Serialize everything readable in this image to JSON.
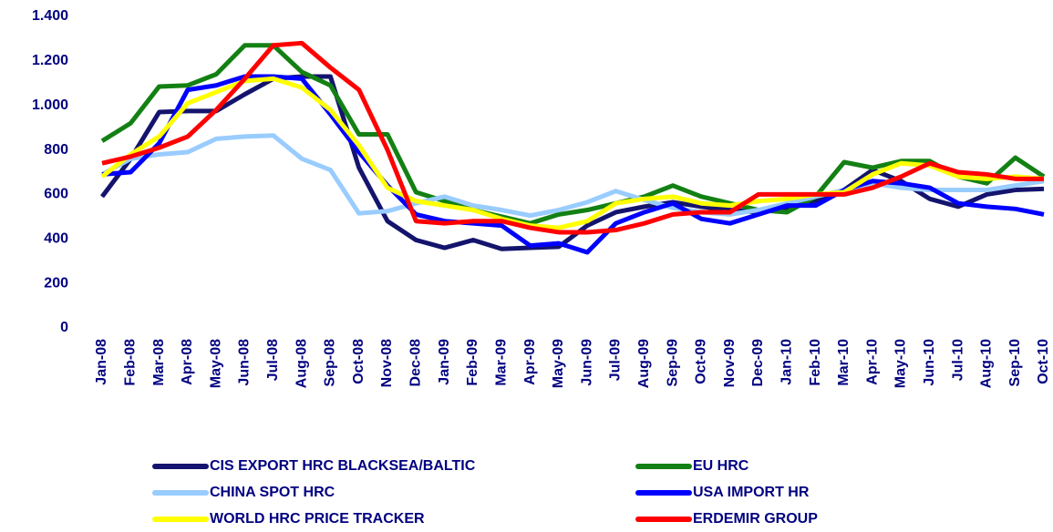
{
  "chart_data": {
    "type": "line",
    "categories": [
      "Jan-08",
      "Feb-08",
      "Mar-08",
      "Apr-08",
      "May-08",
      "Jun-08",
      "Jul-08",
      "Aug-08",
      "Sep-08",
      "Oct-08",
      "Nov-08",
      "Dec-08",
      "Jan-09",
      "Feb-09",
      "Mar-09",
      "Apr-09",
      "May-09",
      "Jun-09",
      "Jul-09",
      "Aug-09",
      "Sep-09",
      "Oct-09",
      "Nov-09",
      "Dec-09",
      "Jan-10",
      "Feb-10",
      "Mar-10",
      "Apr-10",
      "May-10",
      "Jun-10",
      "Jul-10",
      "Aug-10",
      "Sep-10",
      "Oct-10"
    ],
    "series": [
      {
        "name": "CIS EXPORT HRC BLACKSEA/BALTIC",
        "color": "#14146e",
        "values": [
          590,
          760,
          970,
          975,
          975,
          1050,
          1120,
          1130,
          1130,
          720,
          480,
          395,
          360,
          395,
          355,
          360,
          365,
          460,
          520,
          545,
          565,
          545,
          530,
          520,
          540,
          570,
          620,
          710,
          660,
          580,
          545,
          600,
          620,
          625
        ]
      },
      {
        "name": "EU HRC",
        "color": "#138013",
        "values": [
          840,
          920,
          1085,
          1090,
          1140,
          1270,
          1270,
          1150,
          1090,
          870,
          870,
          610,
          570,
          530,
          500,
          470,
          510,
          530,
          560,
          590,
          640,
          590,
          560,
          530,
          520,
          590,
          745,
          720,
          750,
          750,
          680,
          650,
          765,
          680
        ]
      },
      {
        "name": "CHINA SPOT HRC",
        "color": "#99ccff",
        "values": [
          690,
          760,
          780,
          790,
          850,
          860,
          865,
          760,
          710,
          515,
          525,
          560,
          590,
          550,
          530,
          505,
          530,
          565,
          615,
          575,
          540,
          520,
          510,
          530,
          560,
          590,
          620,
          650,
          630,
          620,
          620,
          620,
          640,
          660
        ]
      },
      {
        "name": "USA IMPORT HR",
        "color": "#0000ff",
        "values": [
          690,
          700,
          830,
          1070,
          1090,
          1130,
          1130,
          1120,
          960,
          790,
          640,
          510,
          480,
          470,
          460,
          370,
          380,
          340,
          470,
          520,
          560,
          490,
          470,
          510,
          550,
          550,
          620,
          660,
          650,
          630,
          560,
          545,
          535,
          510
        ]
      },
      {
        "name": "WORLD HRC PRICE TRACKER",
        "color": "#ffff00",
        "values": [
          680,
          780,
          860,
          1010,
          1060,
          1110,
          1120,
          1080,
          980,
          820,
          630,
          570,
          550,
          530,
          490,
          460,
          450,
          480,
          560,
          580,
          590,
          560,
          550,
          570,
          580,
          600,
          610,
          690,
          740,
          730,
          680,
          670,
          680,
          670
        ]
      },
      {
        "name": "ERDEMIR GROUP",
        "color": "#ff0000",
        "values": [
          740,
          770,
          810,
          860,
          980,
          1120,
          1270,
          1280,
          1170,
          1070,
          800,
          480,
          470,
          480,
          480,
          450,
          430,
          430,
          440,
          470,
          510,
          520,
          520,
          600,
          600,
          600,
          600,
          630,
          680,
          740,
          700,
          690,
          670,
          670
        ]
      }
    ],
    "ylim": [
      0,
      1400
    ],
    "yticks": [
      0,
      200,
      400,
      600,
      800,
      {
        "value": 1000,
        "label": "1.000"
      },
      {
        "value": 1200,
        "label": "1.200"
      },
      {
        "value": 1400,
        "label": "1.400"
      }
    ],
    "legend": "bottom"
  }
}
